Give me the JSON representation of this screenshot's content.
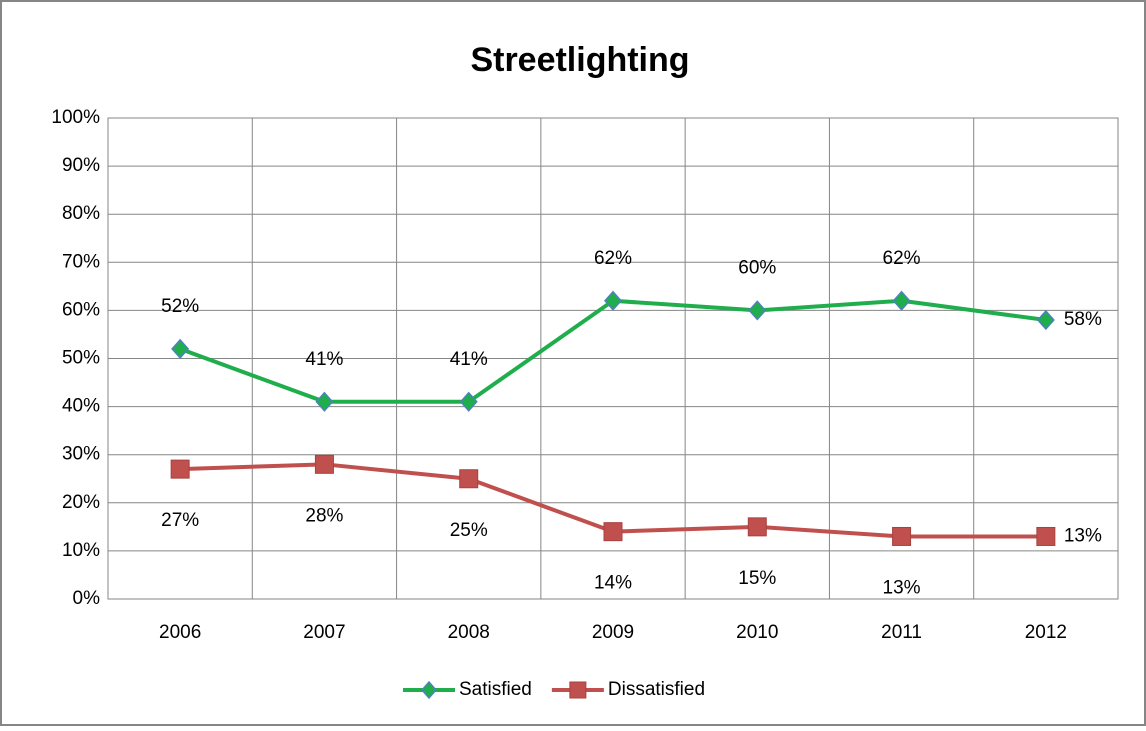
{
  "chart_data": {
    "type": "line",
    "title": "Streetlighting",
    "categories": [
      "2006",
      "2007",
      "2008",
      "2009",
      "2010",
      "2011",
      "2012"
    ],
    "series": [
      {
        "name": "Satisfied",
        "color": "#1fae4b",
        "values": [
          52,
          41,
          41,
          62,
          60,
          62,
          58
        ],
        "value_labels": [
          "52%",
          "41%",
          "41%",
          "62%",
          "60%",
          "62%",
          "58%"
        ]
      },
      {
        "name": "Dissatisfied",
        "color": "#c0504d",
        "values": [
          27,
          28,
          25,
          14,
          15,
          13,
          13
        ],
        "value_labels": [
          "27%",
          "28%",
          "25%",
          "14%",
          "15%",
          "13%",
          "13%"
        ]
      }
    ],
    "ylim": [
      0,
      100
    ],
    "yticks": [
      {
        "value": 0,
        "label": "0%"
      },
      {
        "value": 10,
        "label": "10%"
      },
      {
        "value": 20,
        "label": "20%"
      },
      {
        "value": 30,
        "label": "30%"
      },
      {
        "value": 40,
        "label": "40%"
      },
      {
        "value": 50,
        "label": "50%"
      },
      {
        "value": 60,
        "label": "60%"
      },
      {
        "value": 70,
        "label": "70%"
      },
      {
        "value": 80,
        "label": "80%"
      },
      {
        "value": 90,
        "label": "90%"
      },
      {
        "value": 100,
        "label": "100%"
      }
    ],
    "grid": true,
    "legend": "bottom"
  }
}
